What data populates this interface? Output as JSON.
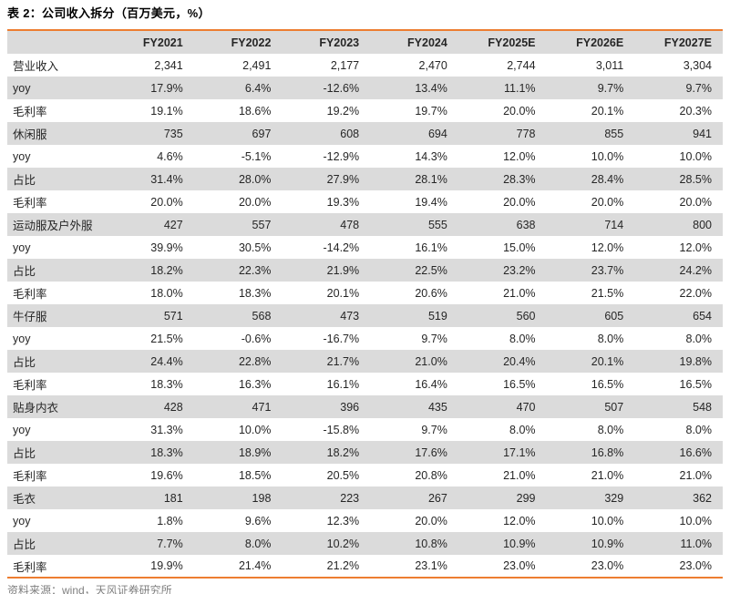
{
  "title": "表 2：公司收入拆分（百万美元，%）",
  "source_note": "资料来源：wind，天风证券研究所",
  "colors": {
    "accent": "#ED7D31",
    "header_bg": "#DBDBDB",
    "row_alt": "#DBDBDB",
    "source_text": "#808080"
  },
  "chart_data": {
    "type": "table",
    "title": "表 2：公司收入拆分（百万美元，%）",
    "columns": [
      "",
      "FY2021",
      "FY2022",
      "FY2023",
      "FY2024",
      "FY2025E",
      "FY2026E",
      "FY2027E"
    ],
    "rows": [
      [
        "营业收入",
        "2,341",
        "2,491",
        "2,177",
        "2,470",
        "2,744",
        "3,011",
        "3,304"
      ],
      [
        "yoy",
        "17.9%",
        "6.4%",
        "-12.6%",
        "13.4%",
        "11.1%",
        "9.7%",
        "9.7%"
      ],
      [
        "毛利率",
        "19.1%",
        "18.6%",
        "19.2%",
        "19.7%",
        "20.0%",
        "20.1%",
        "20.3%"
      ],
      [
        "休闲服",
        "735",
        "697",
        "608",
        "694",
        "778",
        "855",
        "941"
      ],
      [
        "yoy",
        "4.6%",
        "-5.1%",
        "-12.9%",
        "14.3%",
        "12.0%",
        "10.0%",
        "10.0%"
      ],
      [
        "占比",
        "31.4%",
        "28.0%",
        "27.9%",
        "28.1%",
        "28.3%",
        "28.4%",
        "28.5%"
      ],
      [
        "毛利率",
        "20.0%",
        "20.0%",
        "19.3%",
        "19.4%",
        "20.0%",
        "20.0%",
        "20.0%"
      ],
      [
        "运动服及户外服",
        "427",
        "557",
        "478",
        "555",
        "638",
        "714",
        "800"
      ],
      [
        "yoy",
        "39.9%",
        "30.5%",
        "-14.2%",
        "16.1%",
        "15.0%",
        "12.0%",
        "12.0%"
      ],
      [
        "占比",
        "18.2%",
        "22.3%",
        "21.9%",
        "22.5%",
        "23.2%",
        "23.7%",
        "24.2%"
      ],
      [
        "毛利率",
        "18.0%",
        "18.3%",
        "20.1%",
        "20.6%",
        "21.0%",
        "21.5%",
        "22.0%"
      ],
      [
        "牛仔服",
        "571",
        "568",
        "473",
        "519",
        "560",
        "605",
        "654"
      ],
      [
        "yoy",
        "21.5%",
        "-0.6%",
        "-16.7%",
        "9.7%",
        "8.0%",
        "8.0%",
        "8.0%"
      ],
      [
        "占比",
        "24.4%",
        "22.8%",
        "21.7%",
        "21.0%",
        "20.4%",
        "20.1%",
        "19.8%"
      ],
      [
        "毛利率",
        "18.3%",
        "16.3%",
        "16.1%",
        "16.4%",
        "16.5%",
        "16.5%",
        "16.5%"
      ],
      [
        "贴身内衣",
        "428",
        "471",
        "396",
        "435",
        "470",
        "507",
        "548"
      ],
      [
        "yoy",
        "31.3%",
        "10.0%",
        "-15.8%",
        "9.7%",
        "8.0%",
        "8.0%",
        "8.0%"
      ],
      [
        "占比",
        "18.3%",
        "18.9%",
        "18.2%",
        "17.6%",
        "17.1%",
        "16.8%",
        "16.6%"
      ],
      [
        "毛利率",
        "19.6%",
        "18.5%",
        "20.5%",
        "20.8%",
        "21.0%",
        "21.0%",
        "21.0%"
      ],
      [
        "毛衣",
        "181",
        "198",
        "223",
        "267",
        "299",
        "329",
        "362"
      ],
      [
        "yoy",
        "1.8%",
        "9.6%",
        "12.3%",
        "20.0%",
        "12.0%",
        "10.0%",
        "10.0%"
      ],
      [
        "占比",
        "7.7%",
        "8.0%",
        "10.2%",
        "10.8%",
        "10.9%",
        "10.9%",
        "11.0%"
      ],
      [
        "毛利率",
        "19.9%",
        "21.4%",
        "21.2%",
        "23.1%",
        "23.0%",
        "23.0%",
        "23.0%"
      ]
    ]
  }
}
